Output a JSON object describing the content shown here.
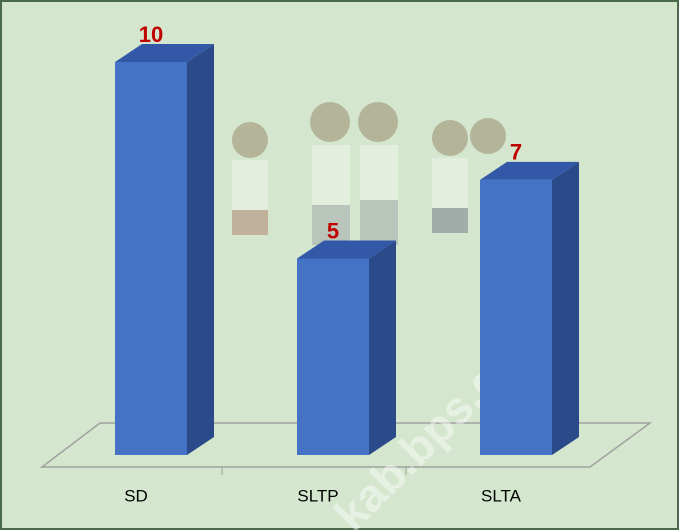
{
  "chart_data": {
    "type": "bar3d",
    "categories": [
      "SD",
      "SLTP",
      "SLTA"
    ],
    "values": [
      10,
      5,
      7
    ],
    "color": "#4472c4",
    "label_color": "#c00000",
    "watermark": "kab.bps.go.id"
  }
}
